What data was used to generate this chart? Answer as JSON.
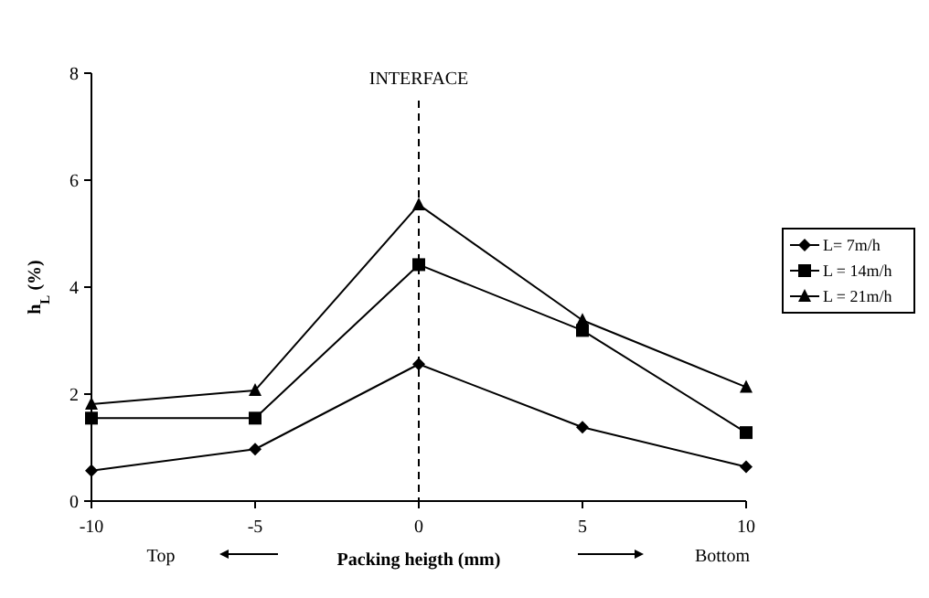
{
  "chart_data": {
    "type": "line",
    "xlabel": "Packing heigth (mm)",
    "ylabel": "h$_{L}$ (%)",
    "x": [
      -10,
      -5,
      0,
      5,
      10
    ],
    "xlim": [
      -10,
      10
    ],
    "xticks": [
      -10,
      -5,
      0,
      5,
      10
    ],
    "ylim": [
      0,
      8
    ],
    "yticks": [
      0,
      2,
      4,
      6,
      8
    ],
    "series": [
      {
        "name": "L= 7m/h",
        "color": "#000000",
        "marker": "diamond",
        "values": [
          0.57,
          0.97,
          2.56,
          1.38,
          0.64
        ]
      },
      {
        "name": "L = 14m/h",
        "color": "#000000",
        "marker": "square",
        "values": [
          1.55,
          1.55,
          4.42,
          3.19,
          1.28
        ]
      },
      {
        "name": "L = 21m/h",
        "color": "#000000",
        "marker": "triangle",
        "values": [
          1.81,
          2.07,
          5.54,
          3.38,
          2.13
        ]
      }
    ],
    "ref_lines": [
      {
        "axis": "x",
        "value": 0,
        "label": "INTERFACE",
        "line_style": "dashed",
        "color": "#000000"
      }
    ],
    "annotations": [
      "Top",
      "Bottom"
    ],
    "legend": "right",
    "grid": false,
    "line_style": "solid"
  }
}
